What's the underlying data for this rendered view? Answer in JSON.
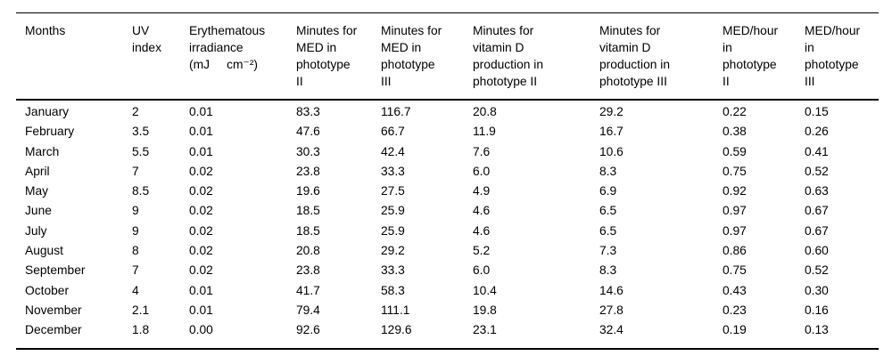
{
  "table": {
    "columns": [
      {
        "label": "Months"
      },
      {
        "label": "UV\nindex"
      },
      {
        "label": "Erythematous\nirradiance\n(mJ     cm⁻²)"
      },
      {
        "label": "Minutes for\nMED in\nphototype\nII"
      },
      {
        "label": "Minutes for\nMED in\nphototype\nIII"
      },
      {
        "label": "Minutes for\nvitamin D\nproduction in\nphototype II"
      },
      {
        "label": "Minutes for\nvitamin D\nproduction in\nphototype III"
      },
      {
        "label": "MED/hour\nin\nphototype\nII"
      },
      {
        "label": "MED/hour\nin\nphototype\nIII"
      }
    ],
    "rows": [
      {
        "month": "January",
        "values": [
          "2",
          "0.01",
          "83.3",
          "116.7",
          "20.8",
          "29.2",
          "0.22",
          "0.15"
        ]
      },
      {
        "month": "February",
        "values": [
          "3.5",
          "0.01",
          "47.6",
          "66.7",
          "11.9",
          "16.7",
          "0.38",
          "0.26"
        ]
      },
      {
        "month": "March",
        "values": [
          "5.5",
          "0.01",
          "30.3",
          "42.4",
          "7.6",
          "10.6",
          "0.59",
          "0.41"
        ]
      },
      {
        "month": "April",
        "values": [
          "7",
          "0.02",
          "23.8",
          "33.3",
          "6.0",
          "8.3",
          "0.75",
          "0.52"
        ]
      },
      {
        "month": "May",
        "values": [
          "8.5",
          "0.02",
          "19.6",
          "27.5",
          "4.9",
          "6.9",
          "0.92",
          "0.63"
        ]
      },
      {
        "month": "June",
        "values": [
          "9",
          "0.02",
          "18.5",
          "25.9",
          "4.6",
          "6.5",
          "0.97",
          "0.67"
        ]
      },
      {
        "month": "July",
        "values": [
          "9",
          "0.02",
          "18.5",
          "25.9",
          "4.6",
          "6.5",
          "0.97",
          "0.67"
        ]
      },
      {
        "month": "August",
        "values": [
          "8",
          "0.02",
          "20.8",
          "29.2",
          "5.2",
          "7.3",
          "0.86",
          "0.60"
        ]
      },
      {
        "month": "September",
        "values": [
          "7",
          "0.02",
          "23.8",
          "33.3",
          "6.0",
          "8.3",
          "0.75",
          "0.52"
        ]
      },
      {
        "month": "October",
        "values": [
          "4",
          "0.01",
          "41.7",
          "58.3",
          "10.4",
          "14.6",
          "0.43",
          "0.30"
        ]
      },
      {
        "month": "November",
        "values": [
          "2.1",
          "0.01",
          "79.4",
          "111.1",
          "19.8",
          "27.8",
          "0.23",
          "0.16"
        ]
      },
      {
        "month": "December",
        "values": [
          "1.8",
          "0.00",
          "92.6",
          "129.6",
          "23.1",
          "32.4",
          "0.19",
          "0.13"
        ]
      }
    ]
  },
  "chart_data": {
    "type": "table",
    "columns": [
      "Months",
      "UV index",
      "Erythematous irradiance (mJ cm⁻²)",
      "Minutes for MED in phototype II",
      "Minutes for MED in phototype III",
      "Minutes for vitamin D production in phototype II",
      "Minutes for vitamin D production in phototype III",
      "MED/hour in phototype II",
      "MED/hour in phototype III"
    ],
    "rows": [
      [
        "January",
        2,
        0.01,
        83.3,
        116.7,
        20.8,
        29.2,
        0.22,
        0.15
      ],
      [
        "February",
        3.5,
        0.01,
        47.6,
        66.7,
        11.9,
        16.7,
        0.38,
        0.26
      ],
      [
        "March",
        5.5,
        0.01,
        30.3,
        42.4,
        7.6,
        10.6,
        0.59,
        0.41
      ],
      [
        "April",
        7,
        0.02,
        23.8,
        33.3,
        6.0,
        8.3,
        0.75,
        0.52
      ],
      [
        "May",
        8.5,
        0.02,
        19.6,
        27.5,
        4.9,
        6.9,
        0.92,
        0.63
      ],
      [
        "June",
        9,
        0.02,
        18.5,
        25.9,
        4.6,
        6.5,
        0.97,
        0.67
      ],
      [
        "July",
        9,
        0.02,
        18.5,
        25.9,
        4.6,
        6.5,
        0.97,
        0.67
      ],
      [
        "August",
        8,
        0.02,
        20.8,
        29.2,
        5.2,
        7.3,
        0.86,
        0.6
      ],
      [
        "September",
        7,
        0.02,
        23.8,
        33.3,
        6.0,
        8.3,
        0.75,
        0.52
      ],
      [
        "October",
        4,
        0.01,
        41.7,
        58.3,
        10.4,
        14.6,
        0.43,
        0.3
      ],
      [
        "November",
        2.1,
        0.01,
        79.4,
        111.1,
        19.8,
        27.8,
        0.23,
        0.16
      ],
      [
        "December",
        1.8,
        0.0,
        92.6,
        129.6,
        23.1,
        32.4,
        0.19,
        0.13
      ]
    ]
  }
}
